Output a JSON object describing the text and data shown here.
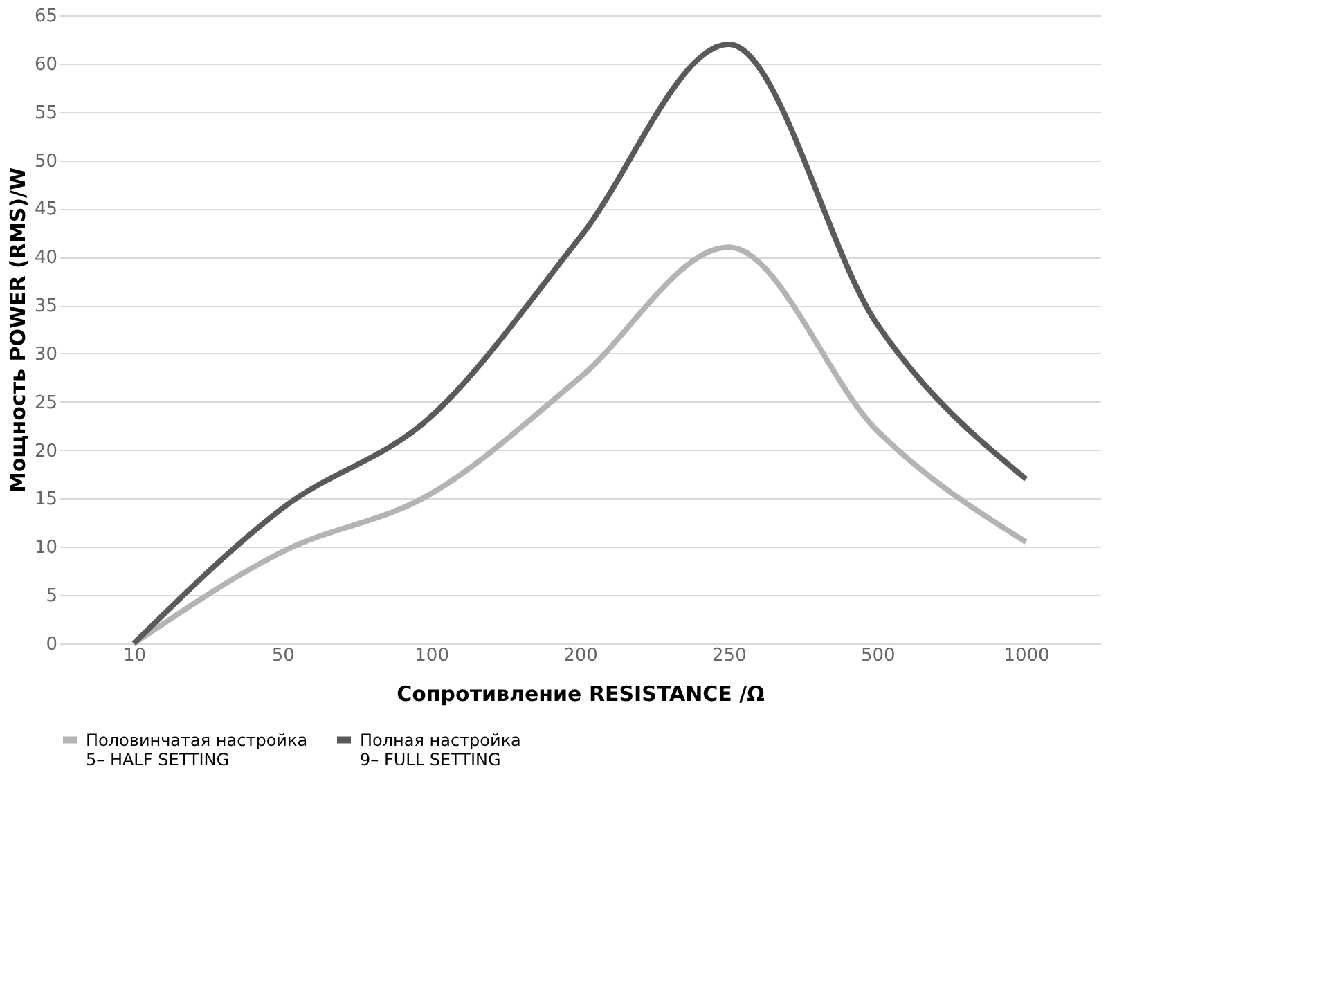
{
  "chart_data": {
    "type": "line",
    "xlabel": "Сопротивление RESISTANCE /Ω",
    "ylabel": "Мощность POWER (RMS)/W",
    "categories": [
      "10",
      "50",
      "100",
      "200",
      "250",
      "500",
      "1000"
    ],
    "series": [
      {
        "name": "Половинчатая настройка\n5– HALF SETTING",
        "color": "#b4b4b4",
        "values": [
          0,
          9.5,
          15.5,
          27.5,
          41,
          22,
          10.5
        ]
      },
      {
        "name": "Полная настройка\n9– FULL SETTING",
        "color": "#5a5a5a",
        "values": [
          0,
          14,
          23.5,
          42,
          62,
          33,
          17
        ]
      }
    ],
    "ylim": [
      0,
      65
    ],
    "yticks": [
      0,
      5,
      10,
      15,
      20,
      25,
      30,
      35,
      40,
      45,
      50,
      55,
      60,
      65
    ],
    "grid": "y",
    "legend": "bottom",
    "marker": "none",
    "line_style": "solid"
  }
}
